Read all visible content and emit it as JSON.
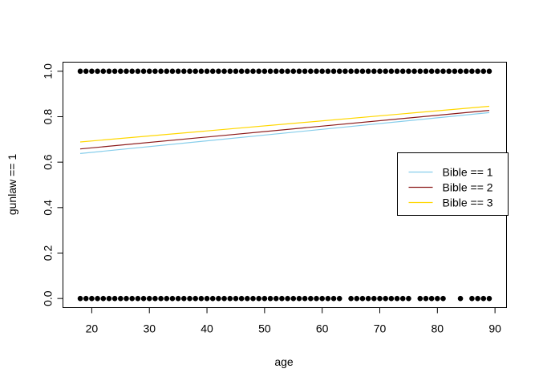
{
  "chart_data": {
    "type": "scatter",
    "title": "",
    "xlabel": "age",
    "ylabel": "gunlaw == 1",
    "xlim": [
      15,
      92
    ],
    "ylim": [
      -0.04,
      1.04
    ],
    "xticks": [
      20,
      30,
      40,
      50,
      60,
      70,
      80,
      90
    ],
    "yticks": [
      0.0,
      0.2,
      0.4,
      0.6,
      0.8,
      1.0
    ],
    "ytick_labels": [
      "0.0",
      "0.2",
      "0.4",
      "0.6",
      "0.8",
      "1.0"
    ],
    "grid": false,
    "legend_position": "right",
    "points": {
      "name": "",
      "color": "#000000",
      "y1_x": [
        18,
        19,
        20,
        21,
        22,
        23,
        24,
        25,
        26,
        27,
        28,
        29,
        30,
        31,
        32,
        33,
        34,
        35,
        36,
        37,
        38,
        39,
        40,
        41,
        42,
        43,
        44,
        45,
        46,
        47,
        48,
        49,
        50,
        51,
        52,
        53,
        54,
        55,
        56,
        57,
        58,
        59,
        60,
        61,
        62,
        63,
        64,
        65,
        66,
        67,
        68,
        69,
        70,
        71,
        72,
        73,
        74,
        75,
        76,
        77,
        78,
        79,
        80,
        81,
        82,
        83,
        84,
        85,
        86,
        87,
        88,
        89
      ],
      "y0_x": [
        18,
        19,
        20,
        21,
        22,
        23,
        24,
        25,
        26,
        27,
        28,
        29,
        30,
        31,
        32,
        33,
        34,
        35,
        36,
        37,
        38,
        39,
        40,
        41,
        42,
        43,
        44,
        45,
        46,
        47,
        48,
        49,
        50,
        51,
        52,
        53,
        54,
        55,
        56,
        57,
        58,
        59,
        60,
        61,
        62,
        63,
        65,
        66,
        67,
        68,
        69,
        70,
        71,
        72,
        73,
        74,
        75,
        77,
        78,
        79,
        80,
        81,
        84,
        86,
        87,
        88,
        89
      ]
    },
    "series": [
      {
        "name": "Bible == 1",
        "color": "#87CEEB",
        "x": [
          18,
          89
        ],
        "values": [
          0.638,
          0.818
        ]
      },
      {
        "name": "Bible == 2",
        "color": "#8B1A1A",
        "x": [
          18,
          89
        ],
        "values": [
          0.658,
          0.828
        ]
      },
      {
        "name": "Bible == 3",
        "color": "#FFD700",
        "x": [
          18,
          89
        ],
        "values": [
          0.689,
          0.846
        ]
      }
    ]
  }
}
